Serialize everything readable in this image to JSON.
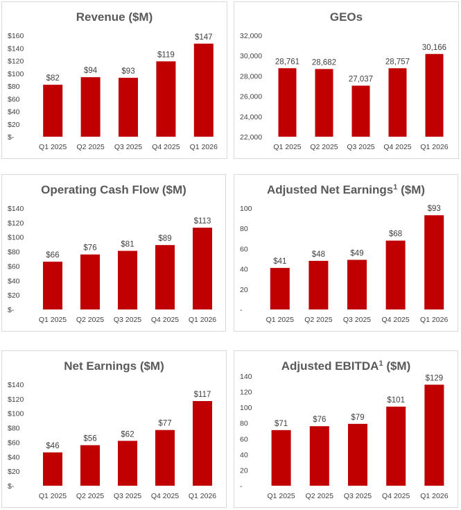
{
  "chart_data": [
    {
      "type": "bar",
      "title": "Revenue ($M)",
      "categories": [
        "Q1 2025",
        "Q2 2025",
        "Q3 2025",
        "Q4 2025",
        "Q1 2026"
      ],
      "values": [
        82,
        94,
        93,
        119,
        147
      ],
      "value_labels": [
        "$82",
        "$94",
        "$93",
        "$119",
        "$147"
      ],
      "y_ticks": [
        0,
        20,
        40,
        60,
        80,
        100,
        120,
        140,
        160
      ],
      "y_tick_labels": [
        "$-",
        "$20",
        "$40",
        "$60",
        "$80",
        "$100",
        "$120",
        "$140",
        "$160"
      ],
      "ylim": [
        0,
        160
      ],
      "color": "#c00000",
      "grid": false
    },
    {
      "type": "bar",
      "title": "GEOs",
      "categories": [
        "Q1 2025",
        "Q2 2025",
        "Q3 2025",
        "Q4 2025",
        "Q1 2026"
      ],
      "values": [
        28761,
        28682,
        27037,
        28757,
        30166
      ],
      "value_labels": [
        "28,761",
        "28,682",
        "27,037",
        "28,757",
        "30,166"
      ],
      "y_ticks": [
        22000,
        24000,
        26000,
        28000,
        30000,
        32000
      ],
      "y_tick_labels": [
        "22,000",
        "24,000",
        "26,000",
        "28,000",
        "30,000",
        "32,000"
      ],
      "ylim": [
        22000,
        32000
      ],
      "color": "#c00000",
      "grid": false
    },
    {
      "type": "bar",
      "title": "Operating Cash Flow ($M)",
      "categories": [
        "Q1 2025",
        "Q2 2025",
        "Q3 2025",
        "Q4 2025",
        "Q1 2026"
      ],
      "values": [
        66,
        76,
        81,
        89,
        113
      ],
      "value_labels": [
        "$66",
        "$76",
        "$81",
        "$89",
        "$113"
      ],
      "y_ticks": [
        0,
        20,
        40,
        60,
        80,
        100,
        120,
        140
      ],
      "y_tick_labels": [
        "$-",
        "$20",
        "$40",
        "$60",
        "$80",
        "$100",
        "$120",
        "$140"
      ],
      "ylim": [
        0,
        140
      ],
      "color": "#c00000",
      "grid": false
    },
    {
      "type": "bar",
      "title": "Adjusted Net Earnings",
      "title_sup": "1",
      "title_suffix": " ($M)",
      "categories": [
        "Q1 2025",
        "Q2 2025",
        "Q3 2025",
        "Q4 2025",
        "Q1 2026"
      ],
      "values": [
        41,
        48,
        49,
        68,
        93
      ],
      "value_labels": [
        "$41",
        "$48",
        "$49",
        "$68",
        "$93"
      ],
      "y_ticks": [
        0,
        20,
        40,
        60,
        80,
        100
      ],
      "y_tick_labels": [
        "-",
        "20",
        "40",
        "60",
        "80",
        "100"
      ],
      "ylim": [
        0,
        100
      ],
      "color": "#c00000",
      "grid": false
    },
    {
      "type": "bar",
      "title": "Net Earnings ($M)",
      "categories": [
        "Q1 2025",
        "Q2 2025",
        "Q3 2025",
        "Q4 2025",
        "Q1 2026"
      ],
      "values": [
        46,
        56,
        62,
        77,
        117
      ],
      "value_labels": [
        "$46",
        "$56",
        "$62",
        "$77",
        "$117"
      ],
      "y_ticks": [
        0,
        20,
        40,
        60,
        80,
        100,
        120,
        140
      ],
      "y_tick_labels": [
        "$-",
        "$20",
        "$40",
        "$60",
        "$80",
        "$100",
        "$120",
        "$140"
      ],
      "ylim": [
        0,
        140
      ],
      "color": "#c00000",
      "grid": false
    },
    {
      "type": "bar",
      "title": "Adjusted EBITDA",
      "title_sup": "1",
      "title_suffix": " ($M)",
      "categories": [
        "Q1 2025",
        "Q2 2025",
        "Q3 2025",
        "Q4 2025",
        "Q1 2026"
      ],
      "values": [
        71,
        76,
        79,
        101,
        129
      ],
      "value_labels": [
        "$71",
        "$76",
        "$79",
        "$101",
        "$129"
      ],
      "y_ticks": [
        0,
        20,
        40,
        60,
        80,
        100,
        120,
        140
      ],
      "y_tick_labels": [
        "-",
        "20",
        "40",
        "60",
        "80",
        "100",
        "120",
        "140"
      ],
      "ylim": [
        0,
        140
      ],
      "color": "#c00000",
      "grid": false
    }
  ]
}
